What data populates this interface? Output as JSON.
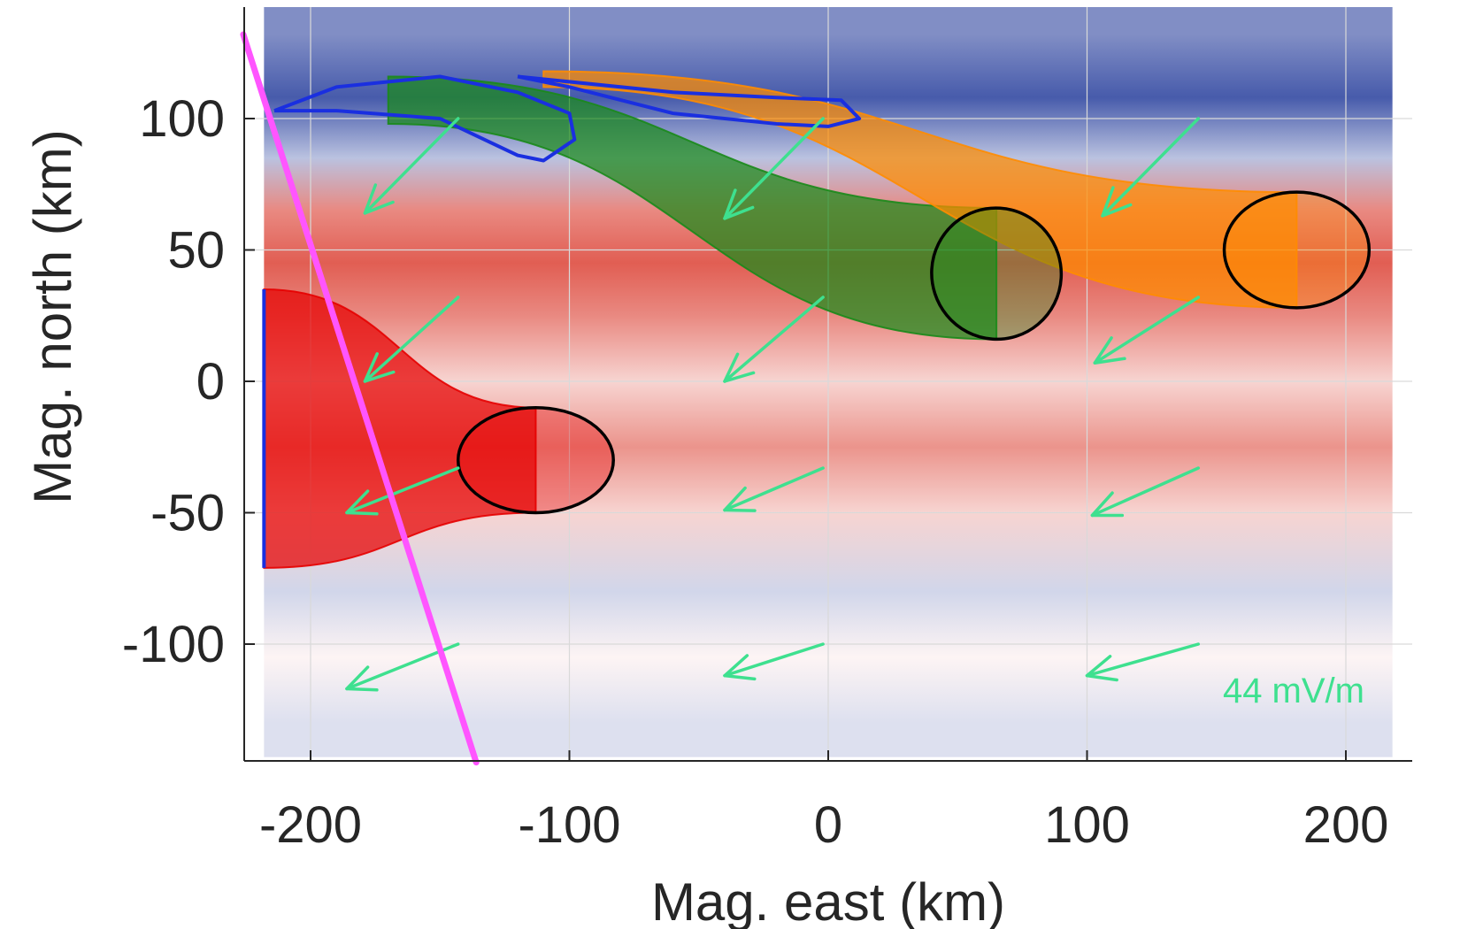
{
  "chart_data": {
    "type": "heatmap",
    "xlabel": "Mag. east (km)",
    "ylabel": "Mag. north (km)",
    "xlim": [
      -225,
      225
    ],
    "ylim": [
      -145,
      145
    ],
    "xticks": [
      -200,
      -100,
      0,
      100,
      200
    ],
    "yticks": [
      -100,
      -50,
      0,
      50,
      100
    ],
    "xtick_labels": [
      "-200",
      "-100",
      "0",
      "100",
      "200"
    ],
    "ytick_labels": [
      "-100",
      "-50",
      "0",
      "50",
      "100"
    ],
    "grid": true,
    "background_field": {
      "colormap": "blue-white-red (diverging)",
      "x_extent": [
        -218,
        218
      ],
      "y_extent": [
        -143,
        143
      ],
      "bands": [
        {
          "y": 132,
          "value": -0.55
        },
        {
          "y": 108,
          "value": -0.8
        },
        {
          "y": 85,
          "value": -0.3
        },
        {
          "y": 65,
          "value": 0.55
        },
        {
          "y": 45,
          "value": 0.75
        },
        {
          "y": 25,
          "value": 0.55
        },
        {
          "y": 0,
          "value": 0.2
        },
        {
          "y": -25,
          "value": 0.5
        },
        {
          "y": -50,
          "value": 0.2
        },
        {
          "y": -80,
          "value": -0.2
        },
        {
          "y": -105,
          "value": 0.05
        },
        {
          "y": -130,
          "value": -0.15
        }
      ]
    },
    "electric_field_arrows": {
      "color": "#3ee08f",
      "scale_label": "44 mV/m",
      "vectors": [
        {
          "x": -143,
          "y": 100,
          "u": -36,
          "v": -36
        },
        {
          "x": -143,
          "y": 32,
          "u": -36,
          "v": -32
        },
        {
          "x": -143,
          "y": -33,
          "u": -43,
          "v": -17
        },
        {
          "x": -143,
          "y": -100,
          "u": -43,
          "v": -17
        },
        {
          "x": -2,
          "y": 100,
          "u": -38,
          "v": -38
        },
        {
          "x": -2,
          "y": 32,
          "u": -38,
          "v": -32
        },
        {
          "x": -2,
          "y": -33,
          "u": -38,
          "v": -16
        },
        {
          "x": -2,
          "y": -100,
          "u": -38,
          "v": -12
        },
        {
          "x": 143,
          "y": 100,
          "u": -37,
          "v": -37
        },
        {
          "x": 143,
          "y": 32,
          "u": -40,
          "v": -25
        },
        {
          "x": 143,
          "y": -33,
          "u": -41,
          "v": -18
        },
        {
          "x": 143,
          "y": -100,
          "u": -43,
          "v": -12
        }
      ]
    },
    "series": [
      {
        "color": "#e60000",
        "ellipse": {
          "cx": -113,
          "cy": -30,
          "rx": 30,
          "ry": 20,
          "angle": 0
        },
        "trail_end": {
          "x": -218,
          "y1": 35,
          "y2": -71
        }
      },
      {
        "color": "#1a8a1a",
        "ellipse": {
          "cx": 65,
          "cy": 41,
          "rx": 25,
          "ry": 25,
          "angle": -18
        },
        "trail_end": {
          "x": -170,
          "y1": 116,
          "y2": 98
        }
      },
      {
        "color": "#ff8c00",
        "ellipse": {
          "cx": 181,
          "cy": 50,
          "rx": 28,
          "ry": 22,
          "angle": 0
        },
        "trail_end": {
          "x": -110,
          "y1": 118,
          "y2": 112
        }
      }
    ],
    "blue_outlines": [
      {
        "points": [
          [
            -214,
            103
          ],
          [
            -190,
            112
          ],
          [
            -150,
            116
          ],
          [
            -120,
            110
          ],
          [
            -100,
            102
          ],
          [
            -98,
            92
          ],
          [
            -110,
            84
          ],
          [
            -120,
            86
          ],
          [
            -150,
            100
          ],
          [
            -190,
            103
          ],
          [
            -214,
            103
          ]
        ]
      },
      {
        "points": [
          [
            -120,
            116
          ],
          [
            -60,
            110
          ],
          [
            -20,
            108
          ],
          [
            5,
            107
          ],
          [
            12,
            100
          ],
          [
            0,
            97
          ],
          [
            -20,
            98
          ],
          [
            -60,
            102
          ],
          [
            -100,
            112
          ],
          [
            -120,
            116
          ]
        ]
      }
    ],
    "magenta_track": {
      "color": "#ff55ff",
      "from": {
        "x": -226,
        "y": 132
      },
      "to": {
        "x": -136,
        "y": -145
      }
    }
  }
}
